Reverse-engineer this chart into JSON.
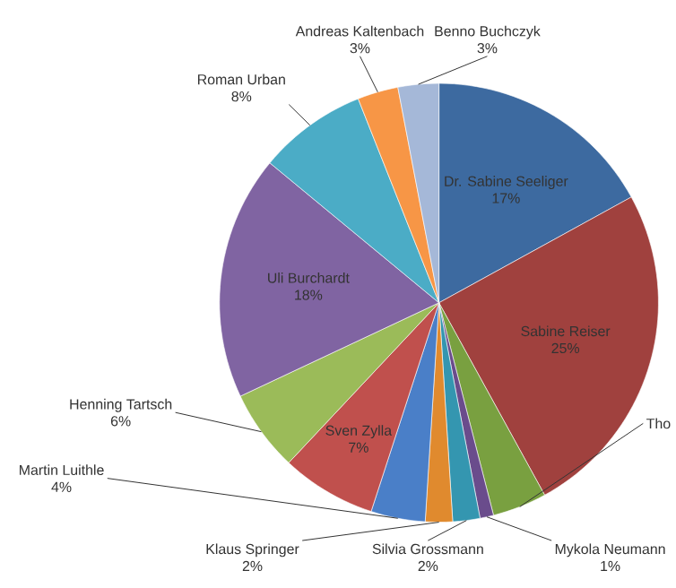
{
  "chart_data": {
    "type": "pie",
    "categories": [
      "Dr. Sabine Seeliger",
      "Sabine Reiser",
      "Tho",
      "Mykola Neumann",
      "Silvia Grossmann",
      "Klaus Springer",
      "Martin Luithle",
      "Sven Zylla",
      "Henning Tartsch",
      "Uli Burchardt",
      "Roman Urban",
      "Andreas Kaltenbach",
      "Benno Buchczyk"
    ],
    "values": [
      17,
      25,
      4,
      1,
      2,
      2,
      4,
      7,
      6,
      18,
      8,
      3,
      3
    ],
    "value_labels": [
      "17%",
      "25%",
      null,
      "1%",
      "2%",
      "2%",
      "4%",
      "7%",
      "6%",
      "18%",
      "8%",
      "3%",
      "3%"
    ],
    "colors": [
      "#3d6aa0",
      "#a0413e",
      "#79a040",
      "#6a4c8c",
      "#3496b0",
      "#e08a2e",
      "#4a7fc8",
      "#c0504d",
      "#9bbb59",
      "#8064a2",
      "#4bacc6",
      "#f79646",
      "#a5b8d8"
    ]
  }
}
